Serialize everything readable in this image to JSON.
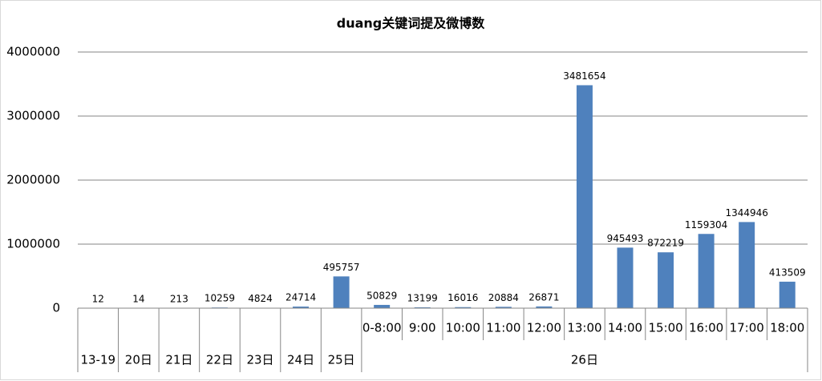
{
  "chart_data": {
    "type": "bar",
    "title": "duang关键词提及微博数",
    "groups": [
      {
        "label": "13-19",
        "categories": [
          null
        ]
      },
      {
        "label": "20日",
        "categories": [
          null
        ]
      },
      {
        "label": "21日",
        "categories": [
          null
        ]
      },
      {
        "label": "22日",
        "categories": [
          null
        ]
      },
      {
        "label": "23日",
        "categories": [
          null
        ]
      },
      {
        "label": "24日",
        "categories": [
          null
        ]
      },
      {
        "label": "25日",
        "categories": [
          null
        ]
      },
      {
        "label": "26日",
        "categories": [
          "0-8:00",
          "9:00",
          "10:00",
          "11:00",
          "12:00",
          "13:00",
          "14:00",
          "15:00",
          "16:00",
          "17:00",
          "18:00"
        ]
      }
    ],
    "values": [
      12,
      14,
      213,
      10259,
      4824,
      24714,
      495757,
      50829,
      13199,
      16016,
      20884,
      26871,
      3481654,
      945493,
      872219,
      1159304,
      1344946,
      413509
    ],
    "color": "#4f81bd",
    "ylim": [
      0,
      4000000
    ],
    "yticks": [
      0,
      1000000,
      2000000,
      3000000,
      4000000
    ],
    "grid": true
  }
}
